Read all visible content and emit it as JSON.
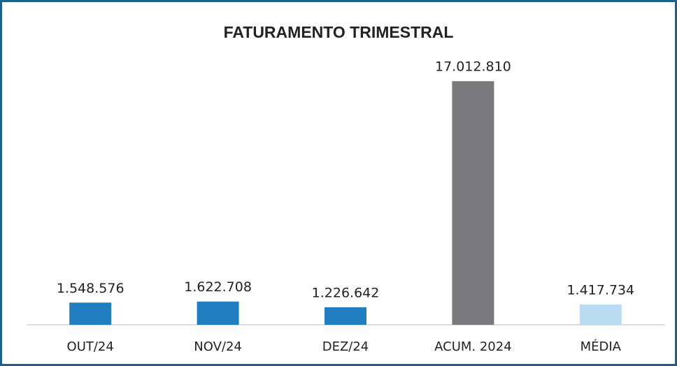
{
  "chart_data": {
    "type": "bar",
    "title": "FATURAMENTO TRIMESTRAL",
    "categories": [
      "OUT/24",
      "NOV/24",
      "DEZ/24",
      "ACUM. 2024",
      "MÉDIA"
    ],
    "values": [
      1548576,
      1622708,
      1226642,
      17012810,
      1417734
    ],
    "value_labels": [
      "1.548.576",
      "1.622.708",
      "1.226.642",
      "17.012.810",
      "1.417.734"
    ],
    "colors": [
      "#1f7dc0",
      "#1f7dc0",
      "#1f7dc0",
      "#7a7a7c",
      "#b9dcf3"
    ],
    "ylim": [
      0,
      18000000
    ]
  }
}
